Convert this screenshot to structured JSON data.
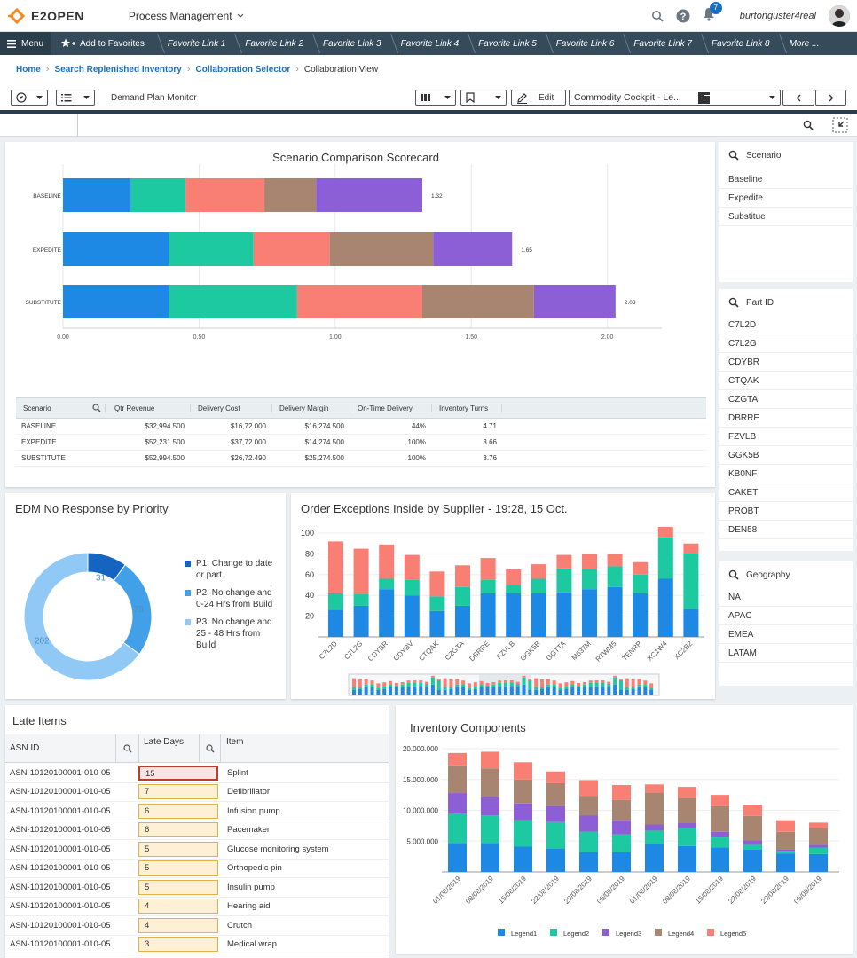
{
  "app": {
    "logo_text": "E2OPEN",
    "process_menu": "Process Management",
    "notification_count": "7",
    "username": "burtonguster4real"
  },
  "favbar": {
    "menu_label": "Menu",
    "add_favorites": "Add to Favorites",
    "links": [
      "Favorite Link 1",
      "Favorite Link 2",
      "Favorite Link 3",
      "Favorite Link 4",
      "Favorite Link 5",
      "Favorite Link 6",
      "Favorite Link 7",
      "Favorite Link 8",
      "More ..."
    ]
  },
  "breadcrumbs": [
    "Home",
    "Search Replenished Inventory",
    "Collaboration Selector",
    "Collaboration View"
  ],
  "toolbar": {
    "title": "Demand Plan Monitor",
    "edit_label": "Edit",
    "view_select": "Commodity Cockpit - Le..."
  },
  "scorecard": {
    "title": "Scenario Comparison Scorecard",
    "colors": [
      "#1e88e5",
      "#1dc9a0",
      "#f97f74",
      "#a88571",
      "#8c5fd6"
    ],
    "chart_data": {
      "type": "bar",
      "orientation": "horizontal",
      "stacked": true,
      "categories": [
        "BASELINE",
        "EXPEDITE",
        "SUBSTITUTE"
      ],
      "series": [
        {
          "values": [
            0.25,
            0.39,
            0.39
          ]
        },
        {
          "values": [
            0.2,
            0.31,
            0.47
          ]
        },
        {
          "values": [
            0.29,
            0.28,
            0.46
          ]
        },
        {
          "values": [
            0.19,
            0.38,
            0.41
          ]
        },
        {
          "values": [
            0.39,
            0.29,
            0.3
          ]
        }
      ],
      "totals": [
        "1.32",
        "1.65",
        "2.03"
      ],
      "xticks": [
        "0.00",
        "0.50",
        "1.00",
        "1.50",
        "2.00"
      ],
      "xlim": [
        0,
        2.2
      ]
    },
    "table": {
      "headers": [
        "Scenario",
        "Qtr Revenue",
        "Delivery Cost",
        "Delivery Margin",
        "On-Time Delivery",
        "Inventory Turns"
      ],
      "rows": [
        [
          "BASELINE",
          "$32,994.500",
          "$16,72.000",
          "$16,274.500",
          "44%",
          "4.71"
        ],
        [
          "EXPEDITE",
          "$52,231.500",
          "$37,72.000",
          "$14,274.500",
          "100%",
          "3.66"
        ],
        [
          "SUBSTITUTE",
          "$52,994.500",
          "$26,72.490",
          "$25,274.500",
          "100%",
          "3.76"
        ]
      ]
    }
  },
  "filters": {
    "scenario": {
      "title": "Scenario",
      "items": [
        "Baseline",
        "Expedite",
        "Substitue"
      ]
    },
    "part_id": {
      "title": "Part ID",
      "items": [
        "C7L2D",
        "C7L2G",
        "CDYBR",
        "CTQAK",
        "CZGTA",
        "DBRRE",
        "FZVLB",
        "GGK5B",
        "KB0NF",
        "CAKET",
        "PROBT",
        "DEN58"
      ]
    },
    "geography": {
      "title": "Geography",
      "items": [
        "NA",
        "APAC",
        "EMEA",
        "LATAM"
      ]
    }
  },
  "edm": {
    "title": "EDM No Response by Priority",
    "chart_data": {
      "type": "pie",
      "donut": true,
      "slices": [
        {
          "label": "P1: Change to date or part",
          "value": 31,
          "color": "#1565c0"
        },
        {
          "label": "P2: No change and 0-24 Hrs from Build",
          "value": 78,
          "color": "#42a0e8"
        },
        {
          "label": "P3: No change and 25 - 48 Hrs from Build",
          "value": 202,
          "color": "#90c9f5"
        }
      ]
    }
  },
  "exceptions": {
    "title": "Order Exceptions Inside by Supplier - 19:28, 15 Oct.",
    "chart_data": {
      "type": "bar",
      "stacked": true,
      "categories": [
        "C7L2D",
        "C7L2G",
        "CDYBR",
        "CDYBV",
        "CTQAK",
        "CZGTA",
        "DBRRE",
        "FZVLB",
        "GGK5B",
        "GGTTA",
        "M637M",
        "R7WM5",
        "TENRP",
        "XC1W4",
        "XC2B2"
      ],
      "series": [
        {
          "color": "#1e88e5",
          "values": [
            26,
            30,
            46,
            40,
            25,
            30,
            42,
            42,
            42,
            43,
            46,
            48,
            42,
            56,
            27
          ]
        },
        {
          "color": "#1dc9a0",
          "values": [
            16,
            11,
            10,
            15,
            14,
            18,
            13,
            8,
            14,
            23,
            19,
            20,
            18,
            40,
            54
          ]
        },
        {
          "color": "#f97f74",
          "values": [
            50,
            44,
            33,
            24,
            24,
            21,
            21,
            15,
            14,
            13,
            15,
            12,
            12,
            10,
            9
          ]
        }
      ],
      "ylim": [
        0,
        100
      ],
      "yticks": [
        "100",
        "80",
        "60",
        "40",
        "20"
      ]
    }
  },
  "late_items": {
    "title": "Late Items",
    "headers": [
      "ASN ID",
      "Late Days",
      "Item"
    ],
    "rows": [
      [
        "ASN-10120100001-010-05",
        "15",
        "Splint"
      ],
      [
        "ASN-10120100001-010-05",
        "7",
        "Defibrillator"
      ],
      [
        "ASN-10120100001-010-05",
        "6",
        "Infusion pump"
      ],
      [
        "ASN-10120100001-010-05",
        "6",
        "Pacemaker"
      ],
      [
        "ASN-10120100001-010-05",
        "5",
        "Glucose monitoring system"
      ],
      [
        "ASN-10120100001-010-05",
        "5",
        "Orthopedic pin"
      ],
      [
        "ASN-10120100001-010-05",
        "5",
        "Insulin pump"
      ],
      [
        "ASN-10120100001-010-05",
        "4",
        "Hearing aid"
      ],
      [
        "ASN-10120100001-010-05",
        "4",
        "Crutch"
      ],
      [
        "ASN-10120100001-010-05",
        "3",
        "Medical wrap"
      ]
    ]
  },
  "inventory": {
    "title": "Inventory Components",
    "chart_data": {
      "type": "bar",
      "stacked": true,
      "categories": [
        "01/08/2019",
        "08/08/2019",
        "15/08/2019",
        "22/08/2019",
        "29/08/2019",
        "05/09/2019",
        "01/08/2019",
        "08/08/2019",
        "15/08/2019",
        "22/08/2019",
        "29/08/2019",
        "05/09/2019"
      ],
      "series": [
        {
          "name": "Legend1",
          "color": "#1e88e5",
          "values": [
            4.7,
            4.7,
            4.1,
            3.8,
            3.2,
            3.2,
            4.5,
            4.2,
            4.0,
            3.6,
            3.0,
            2.9
          ]
        },
        {
          "name": "Legend2",
          "color": "#1dc9a0",
          "values": [
            4.8,
            4.5,
            4.3,
            4.3,
            3.3,
            2.9,
            2.2,
            2.9,
            1.6,
            0.8,
            0.4,
            1.0
          ]
        },
        {
          "name": "Legend3",
          "color": "#8c5fd6",
          "values": [
            3.3,
            3.0,
            2.7,
            2.6,
            2.7,
            2.3,
            1.0,
            0.9,
            0.9,
            0.7,
            0.2,
            0.5
          ]
        },
        {
          "name": "Legend4",
          "color": "#a88571",
          "values": [
            4.5,
            4.6,
            3.9,
            3.7,
            3.1,
            3.3,
            5.2,
            4.0,
            4.2,
            4.0,
            2.9,
            2.7
          ]
        },
        {
          "name": "Legend5",
          "color": "#f97f74",
          "values": [
            2.0,
            2.7,
            2.8,
            1.9,
            2.6,
            2.4,
            1.3,
            1.8,
            1.8,
            1.8,
            1.9,
            0.9
          ]
        }
      ],
      "ylim": [
        0,
        20000000
      ],
      "yticks": [
        "20.000.000",
        "15.000.000",
        "10.000.000",
        "5.000.000",
        "0"
      ]
    }
  }
}
